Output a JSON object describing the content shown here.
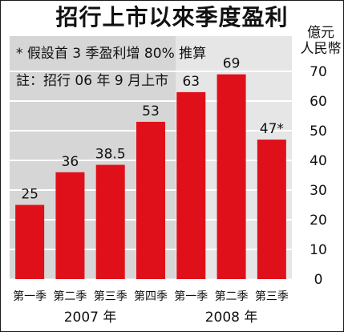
{
  "chart_data": {
    "type": "bar",
    "title": "招行上市以來季度盈利",
    "unit_label": [
      "億元",
      "人民幣"
    ],
    "notes": [
      "* 假設首 3 季盈利增 80% 推算",
      "註：招行 06 年 9 月上市"
    ],
    "categories": [
      "第一季",
      "第二季",
      "第三季",
      "第四季",
      "第一季",
      "第二季",
      "第三季"
    ],
    "groups": [
      {
        "label": "2007 年",
        "count": 4
      },
      {
        "label": "2008 年",
        "count": 3
      }
    ],
    "values": [
      25,
      36,
      38.5,
      53,
      63,
      69,
      47
    ],
    "value_labels": [
      "25",
      "36",
      "38.5",
      "53",
      "63",
      "69",
      "47*"
    ],
    "ylim": [
      0,
      80
    ],
    "yticks": [
      0,
      10,
      20,
      30,
      40,
      50,
      60,
      70
    ],
    "grid": true,
    "colors": {
      "bar": "#e0101a",
      "plot_left": "#d6d6d6",
      "plot_right": "#e6e6e6",
      "grid": "#ffffff"
    }
  }
}
